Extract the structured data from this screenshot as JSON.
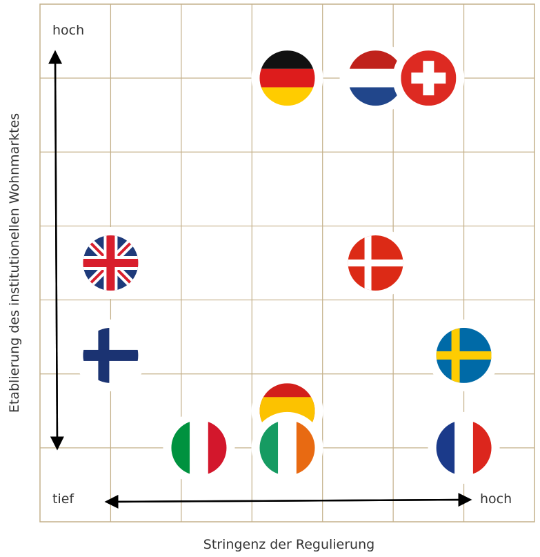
{
  "chart_data": {
    "type": "scatter",
    "xlabel": "Stringenz der Regulierung",
    "ylabel": "Etablierung des institutionellen Wohnmarktes",
    "x_low_label": "tief",
    "x_high_label": "hoch",
    "y_high_label": "hoch",
    "xlim": [
      0,
      7
    ],
    "ylim": [
      0,
      7
    ],
    "grid": true,
    "grid_color": "#c4b08a",
    "points": [
      {
        "flag": "germany-flag",
        "x": 3.5,
        "y": 6,
        "colors": [
          "#111111",
          "#dd1c1c",
          "#ffcc00"
        ]
      },
      {
        "flag": "netherlands-flag",
        "x": 4.75,
        "y": 6,
        "colors": [
          "#c0221c",
          "#ffffff",
          "#21468b"
        ]
      },
      {
        "flag": "switzerland-flag",
        "x": 5.5,
        "y": 6,
        "colors": [
          "#dd2a22",
          "#ffffff"
        ]
      },
      {
        "flag": "united-kingdom-flag",
        "x": 1,
        "y": 3.5,
        "colors": [
          "#1e3a7a",
          "#ffffff",
          "#d81e2c"
        ]
      },
      {
        "flag": "denmark-flag",
        "x": 4.75,
        "y": 3.5,
        "colors": [
          "#dc2a16",
          "#ffffff"
        ]
      },
      {
        "flag": "finland-flag",
        "x": 1,
        "y": 2.25,
        "colors": [
          "#ffffff",
          "#1b3372"
        ]
      },
      {
        "flag": "sweden-flag",
        "x": 6,
        "y": 2.25,
        "colors": [
          "#006aa7",
          "#fecc02"
        ]
      },
      {
        "flag": "spain-flag",
        "x": 3.5,
        "y": 1.5,
        "colors": [
          "#d21f1b",
          "#fcc200"
        ]
      },
      {
        "flag": "italy-flag",
        "x": 2.25,
        "y": 1,
        "colors": [
          "#00923f",
          "#ffffff",
          "#d3172c"
        ]
      },
      {
        "flag": "ireland-flag",
        "x": 3.5,
        "y": 1,
        "colors": [
          "#169b62",
          "#ffffff",
          "#e86a12"
        ]
      },
      {
        "flag": "france-flag",
        "x": 6,
        "y": 1,
        "colors": [
          "#1b3a8a",
          "#ffffff",
          "#dc261d"
        ]
      }
    ]
  }
}
